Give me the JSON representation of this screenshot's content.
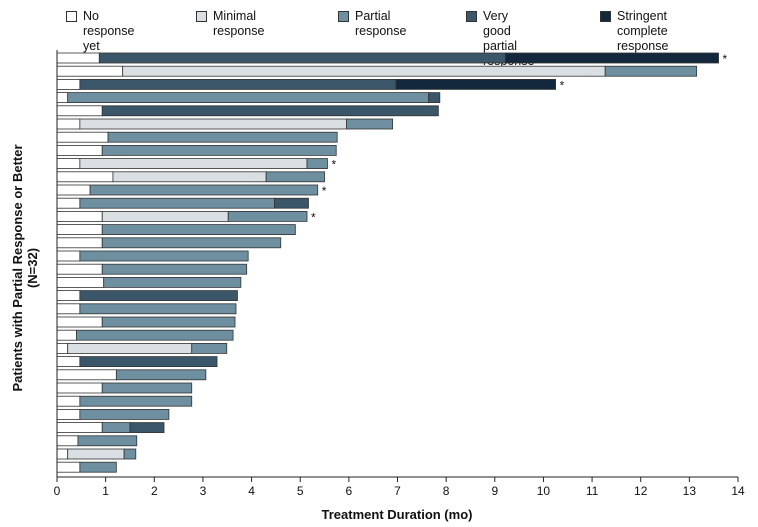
{
  "chart_data": {
    "type": "bar",
    "orientation": "horizontal-stacked",
    "title": "",
    "xlabel": "Treatment Duration (mo)",
    "ylabel": "Patients with Partial Response or Better",
    "ylabel_sub": "(N=32)",
    "xlim": [
      0,
      14
    ],
    "xticks": [
      "0",
      "1",
      "2",
      "3",
      "4",
      "5",
      "6",
      "7",
      "8",
      "9",
      "10",
      "11",
      "12",
      "13",
      "14"
    ],
    "grid": false,
    "legend": [
      {
        "key": "no_response",
        "label": "No response yet",
        "color": "#ffffff"
      },
      {
        "key": "minimal",
        "label": "Minimal response",
        "color": "#d9dfe2"
      },
      {
        "key": "partial",
        "label": "Partial response",
        "color": "#6d8fa0"
      },
      {
        "key": "vgpr",
        "label": "Very good partial\nresponse",
        "color": "#3b5668"
      },
      {
        "key": "scr",
        "label": "Stringent complete\nresponse",
        "color": "#13283c"
      }
    ],
    "asterisk_symbol": "*",
    "patients": [
      {
        "segments": [
          [
            0,
            0.87,
            "no_response"
          ],
          [
            0.87,
            9.22,
            "vgpr"
          ],
          [
            9.22,
            13.6,
            "scr"
          ]
        ],
        "asterisk": true
      },
      {
        "segments": [
          [
            0,
            1.35,
            "no_response"
          ],
          [
            1.35,
            11.27,
            "minimal"
          ],
          [
            11.27,
            13.15,
            "partial"
          ]
        ],
        "asterisk": false
      },
      {
        "segments": [
          [
            0,
            0.47,
            "no_response"
          ],
          [
            0.47,
            6.97,
            "vgpr"
          ],
          [
            6.97,
            10.25,
            "scr"
          ]
        ],
        "asterisk": true
      },
      {
        "segments": [
          [
            0,
            0.22,
            "no_response"
          ],
          [
            0.22,
            7.64,
            "partial"
          ],
          [
            7.64,
            7.87,
            "vgpr"
          ]
        ],
        "asterisk": false
      },
      {
        "segments": [
          [
            0,
            0.93,
            "no_response"
          ],
          [
            0.93,
            7.84,
            "vgpr"
          ]
        ],
        "asterisk": false
      },
      {
        "segments": [
          [
            0,
            0.47,
            "no_response"
          ],
          [
            0.47,
            5.95,
            "minimal"
          ],
          [
            5.95,
            6.9,
            "partial"
          ]
        ],
        "asterisk": false
      },
      {
        "segments": [
          [
            0,
            1.05,
            "no_response"
          ],
          [
            1.05,
            5.76,
            "partial"
          ]
        ],
        "asterisk": false
      },
      {
        "segments": [
          [
            0,
            0.93,
            "no_response"
          ],
          [
            0.93,
            5.74,
            "partial"
          ]
        ],
        "asterisk": false
      },
      {
        "segments": [
          [
            0,
            0.47,
            "no_response"
          ],
          [
            0.47,
            5.14,
            "minimal"
          ],
          [
            5.14,
            5.56,
            "partial"
          ]
        ],
        "asterisk": true
      },
      {
        "segments": [
          [
            0,
            1.15,
            "no_response"
          ],
          [
            1.15,
            4.3,
            "minimal"
          ],
          [
            4.3,
            5.5,
            "partial"
          ]
        ],
        "asterisk": false
      },
      {
        "segments": [
          [
            0,
            0.68,
            "no_response"
          ],
          [
            0.68,
            5.36,
            "partial"
          ]
        ],
        "asterisk": true
      },
      {
        "segments": [
          [
            0,
            0.47,
            "no_response"
          ],
          [
            0.47,
            4.47,
            "partial"
          ],
          [
            4.47,
            5.17,
            "vgpr"
          ]
        ],
        "asterisk": false
      },
      {
        "segments": [
          [
            0,
            0.93,
            "no_response"
          ],
          [
            0.93,
            3.52,
            "minimal"
          ],
          [
            3.52,
            5.14,
            "partial"
          ]
        ],
        "asterisk": true
      },
      {
        "segments": [
          [
            0,
            0.93,
            "no_response"
          ],
          [
            0.93,
            4.9,
            "partial"
          ]
        ],
        "asterisk": false
      },
      {
        "segments": [
          [
            0,
            0.93,
            "no_response"
          ],
          [
            0.93,
            4.6,
            "partial"
          ]
        ],
        "asterisk": false
      },
      {
        "segments": [
          [
            0,
            0.47,
            "no_response"
          ],
          [
            0.47,
            3.93,
            "partial"
          ]
        ],
        "asterisk": false
      },
      {
        "segments": [
          [
            0,
            0.93,
            "no_response"
          ],
          [
            0.93,
            3.9,
            "partial"
          ]
        ],
        "asterisk": false
      },
      {
        "segments": [
          [
            0,
            0.96,
            "no_response"
          ],
          [
            0.96,
            3.78,
            "partial"
          ]
        ],
        "asterisk": false
      },
      {
        "segments": [
          [
            0,
            0.47,
            "no_response"
          ],
          [
            0.47,
            3.71,
            "vgpr"
          ]
        ],
        "asterisk": false
      },
      {
        "segments": [
          [
            0,
            0.47,
            "no_response"
          ],
          [
            0.47,
            3.68,
            "partial"
          ]
        ],
        "asterisk": false
      },
      {
        "segments": [
          [
            0,
            0.93,
            "no_response"
          ],
          [
            0.93,
            3.66,
            "partial"
          ]
        ],
        "asterisk": false
      },
      {
        "segments": [
          [
            0,
            0.4,
            "no_response"
          ],
          [
            0.4,
            3.62,
            "partial"
          ]
        ],
        "asterisk": false
      },
      {
        "segments": [
          [
            0,
            0.22,
            "no_response"
          ],
          [
            0.22,
            2.77,
            "minimal"
          ],
          [
            2.77,
            3.49,
            "partial"
          ]
        ],
        "asterisk": false
      },
      {
        "segments": [
          [
            0,
            0.47,
            "no_response"
          ],
          [
            0.47,
            3.29,
            "vgpr"
          ]
        ],
        "asterisk": false
      },
      {
        "segments": [
          [
            0,
            1.22,
            "no_response"
          ],
          [
            1.22,
            3.06,
            "partial"
          ]
        ],
        "asterisk": false
      },
      {
        "segments": [
          [
            0,
            0.93,
            "no_response"
          ],
          [
            0.93,
            2.77,
            "partial"
          ]
        ],
        "asterisk": false
      },
      {
        "segments": [
          [
            0,
            0.47,
            "no_response"
          ],
          [
            0.47,
            2.77,
            "partial"
          ]
        ],
        "asterisk": false
      },
      {
        "segments": [
          [
            0,
            0.47,
            "no_response"
          ],
          [
            0.47,
            2.3,
            "partial"
          ]
        ],
        "asterisk": false
      },
      {
        "segments": [
          [
            0,
            0.93,
            "no_response"
          ],
          [
            0.93,
            1.5,
            "partial"
          ],
          [
            1.5,
            2.2,
            "vgpr"
          ]
        ],
        "asterisk": false
      },
      {
        "segments": [
          [
            0,
            0.43,
            "no_response"
          ],
          [
            0.43,
            1.64,
            "partial"
          ]
        ],
        "asterisk": false
      },
      {
        "segments": [
          [
            0,
            0.22,
            "no_response"
          ],
          [
            0.22,
            1.38,
            "minimal"
          ],
          [
            1.38,
            1.62,
            "partial"
          ]
        ],
        "asterisk": false
      },
      {
        "segments": [
          [
            0,
            0.47,
            "no_response"
          ],
          [
            0.47,
            1.22,
            "partial"
          ]
        ],
        "asterisk": false
      }
    ]
  }
}
